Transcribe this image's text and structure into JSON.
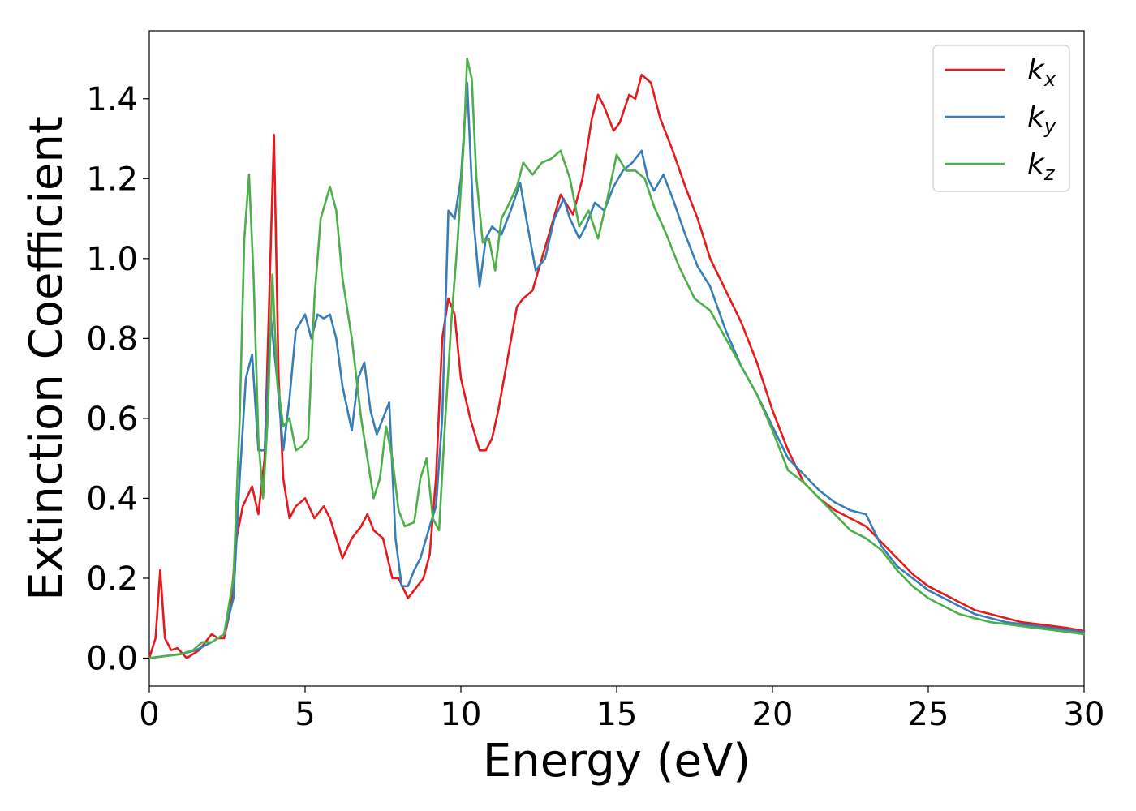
{
  "chart_data": {
    "type": "line",
    "title": "",
    "xlabel": "Energy (eV)",
    "ylabel": "Extinction Coefficient",
    "xlim": [
      0,
      30
    ],
    "ylim": [
      -0.07,
      1.57
    ],
    "xticks": [
      0,
      5,
      10,
      15,
      20,
      25,
      30
    ],
    "xtick_labels": [
      "0",
      "5",
      "10",
      "15",
      "20",
      "25",
      "30"
    ],
    "yticks": [
      0.0,
      0.2,
      0.4,
      0.6,
      0.8,
      1.0,
      1.2,
      1.4
    ],
    "ytick_labels": [
      "0.0",
      "0.2",
      "0.4",
      "0.6",
      "0.8",
      "1.0",
      "1.2",
      "1.4"
    ],
    "grid": false,
    "legend_position": "top-right",
    "series": [
      {
        "name": "kx",
        "name_base": "k",
        "name_sub": "x",
        "color": "#e41a1c",
        "x": [
          0,
          0.2,
          0.35,
          0.5,
          0.7,
          0.9,
          1.2,
          1.6,
          2.0,
          2.2,
          2.4,
          2.6,
          2.8,
          3.0,
          3.3,
          3.5,
          3.7,
          3.85,
          4.0,
          4.15,
          4.3,
          4.5,
          4.7,
          5.0,
          5.3,
          5.6,
          5.8,
          6.0,
          6.2,
          6.5,
          6.8,
          7.0,
          7.2,
          7.5,
          7.8,
          8.0,
          8.3,
          8.5,
          8.8,
          9.0,
          9.2,
          9.4,
          9.6,
          9.8,
          10.0,
          10.3,
          10.6,
          10.8,
          11.0,
          11.2,
          11.5,
          11.8,
          12.0,
          12.3,
          12.6,
          12.9,
          13.2,
          13.6,
          13.9,
          14.2,
          14.4,
          14.6,
          14.9,
          15.1,
          15.4,
          15.6,
          15.8,
          16.1,
          16.4,
          16.8,
          17.2,
          17.6,
          18.0,
          18.5,
          19.0,
          19.5,
          20.0,
          20.5,
          21.0,
          21.5,
          22.0,
          22.5,
          23.0,
          23.5,
          24.0,
          24.5,
          25.0,
          25.5,
          26.0,
          26.5,
          27.0,
          27.5,
          28.0,
          28.5,
          29.0,
          29.5,
          30.0
        ],
        "y": [
          0.0,
          0.05,
          0.22,
          0.05,
          0.02,
          0.025,
          0.0,
          0.02,
          0.06,
          0.05,
          0.05,
          0.12,
          0.3,
          0.38,
          0.43,
          0.36,
          0.5,
          0.9,
          1.31,
          0.7,
          0.45,
          0.35,
          0.38,
          0.4,
          0.35,
          0.38,
          0.35,
          0.3,
          0.25,
          0.3,
          0.33,
          0.36,
          0.32,
          0.3,
          0.2,
          0.2,
          0.15,
          0.17,
          0.2,
          0.26,
          0.45,
          0.8,
          0.9,
          0.86,
          0.7,
          0.6,
          0.52,
          0.52,
          0.55,
          0.62,
          0.75,
          0.88,
          0.9,
          0.92,
          1.0,
          1.08,
          1.16,
          1.11,
          1.2,
          1.35,
          1.41,
          1.38,
          1.32,
          1.34,
          1.41,
          1.4,
          1.46,
          1.44,
          1.35,
          1.27,
          1.18,
          1.1,
          1.0,
          0.92,
          0.84,
          0.74,
          0.62,
          0.52,
          0.44,
          0.4,
          0.37,
          0.35,
          0.33,
          0.29,
          0.25,
          0.21,
          0.18,
          0.16,
          0.14,
          0.12,
          0.11,
          0.1,
          0.09,
          0.085,
          0.08,
          0.075,
          0.068
        ]
      },
      {
        "name": "ky",
        "name_base": "k",
        "name_sub": "y",
        "color": "#377eb8",
        "x": [
          0,
          0.5,
          1.0,
          1.5,
          2.0,
          2.4,
          2.7,
          2.9,
          3.1,
          3.3,
          3.5,
          3.7,
          3.9,
          4.1,
          4.3,
          4.5,
          4.7,
          5.0,
          5.2,
          5.4,
          5.6,
          5.8,
          6.0,
          6.2,
          6.5,
          6.7,
          6.9,
          7.1,
          7.3,
          7.5,
          7.7,
          7.9,
          8.1,
          8.3,
          8.5,
          8.7,
          9.0,
          9.2,
          9.4,
          9.6,
          9.8,
          10.0,
          10.2,
          10.4,
          10.6,
          10.8,
          11.0,
          11.3,
          11.6,
          11.9,
          12.1,
          12.4,
          12.7,
          13.0,
          13.3,
          13.5,
          13.8,
          14.0,
          14.3,
          14.6,
          14.9,
          15.2,
          15.5,
          15.8,
          16.0,
          16.2,
          16.5,
          16.8,
          17.2,
          17.6,
          18.0,
          18.5,
          19.0,
          19.5,
          20.0,
          20.5,
          21.0,
          21.5,
          22.0,
          22.5,
          23.0,
          23.5,
          24.0,
          24.5,
          25.0,
          25.5,
          26.0,
          26.5,
          27.0,
          27.5,
          28.0,
          28.5,
          29.0,
          29.5,
          30.0
        ],
        "y": [
          0.0,
          0.005,
          0.01,
          0.02,
          0.04,
          0.06,
          0.15,
          0.45,
          0.7,
          0.76,
          0.52,
          0.52,
          0.85,
          0.7,
          0.52,
          0.65,
          0.82,
          0.86,
          0.8,
          0.86,
          0.85,
          0.86,
          0.8,
          0.68,
          0.57,
          0.7,
          0.74,
          0.62,
          0.56,
          0.6,
          0.64,
          0.3,
          0.18,
          0.18,
          0.22,
          0.25,
          0.33,
          0.38,
          0.6,
          1.12,
          1.1,
          1.2,
          1.44,
          1.1,
          0.93,
          1.05,
          1.08,
          1.06,
          1.12,
          1.19,
          1.1,
          0.97,
          1.0,
          1.1,
          1.15,
          1.1,
          1.05,
          1.08,
          1.14,
          1.12,
          1.18,
          1.22,
          1.24,
          1.27,
          1.2,
          1.17,
          1.21,
          1.15,
          1.06,
          0.98,
          0.93,
          0.82,
          0.73,
          0.66,
          0.58,
          0.5,
          0.46,
          0.42,
          0.39,
          0.37,
          0.36,
          0.28,
          0.23,
          0.2,
          0.17,
          0.15,
          0.13,
          0.11,
          0.1,
          0.09,
          0.085,
          0.08,
          0.075,
          0.07,
          0.065
        ]
      },
      {
        "name": "kz",
        "name_base": "k",
        "name_sub": "z",
        "color": "#4daf4a",
        "x": [
          0,
          0.5,
          1.0,
          1.4,
          1.7,
          2.0,
          2.4,
          2.7,
          2.9,
          3.05,
          3.2,
          3.35,
          3.5,
          3.65,
          3.8,
          3.95,
          4.1,
          4.3,
          4.5,
          4.7,
          4.9,
          5.1,
          5.3,
          5.5,
          5.8,
          6.0,
          6.2,
          6.5,
          6.8,
          7.0,
          7.2,
          7.4,
          7.6,
          7.8,
          8.0,
          8.2,
          8.5,
          8.7,
          8.9,
          9.1,
          9.3,
          9.5,
          9.7,
          9.9,
          10.1,
          10.2,
          10.35,
          10.5,
          10.7,
          10.9,
          11.1,
          11.3,
          11.5,
          11.8,
          12.0,
          12.3,
          12.6,
          12.9,
          13.2,
          13.5,
          13.8,
          14.1,
          14.4,
          14.7,
          15.0,
          15.3,
          15.6,
          15.9,
          16.2,
          16.6,
          17.0,
          17.5,
          18.0,
          18.5,
          19.0,
          19.5,
          20.0,
          20.5,
          21.0,
          21.5,
          22.0,
          22.5,
          23.0,
          23.5,
          24.0,
          24.5,
          25.0,
          25.5,
          26.0,
          26.5,
          27.0,
          27.5,
          28.0,
          28.5,
          29.0,
          29.5,
          30.0
        ],
        "y": [
          0.0,
          0.005,
          0.01,
          0.02,
          0.04,
          0.04,
          0.06,
          0.2,
          0.6,
          1.05,
          1.21,
          0.95,
          0.55,
          0.4,
          0.6,
          0.96,
          0.7,
          0.58,
          0.6,
          0.52,
          0.53,
          0.55,
          0.9,
          1.1,
          1.18,
          1.12,
          0.95,
          0.8,
          0.6,
          0.5,
          0.4,
          0.45,
          0.58,
          0.5,
          0.37,
          0.33,
          0.34,
          0.45,
          0.5,
          0.35,
          0.32,
          0.6,
          0.85,
          1.05,
          1.3,
          1.5,
          1.45,
          1.2,
          1.04,
          1.05,
          0.97,
          1.1,
          1.13,
          1.18,
          1.24,
          1.21,
          1.24,
          1.25,
          1.27,
          1.2,
          1.08,
          1.12,
          1.05,
          1.15,
          1.26,
          1.22,
          1.22,
          1.2,
          1.13,
          1.06,
          0.98,
          0.9,
          0.87,
          0.8,
          0.73,
          0.66,
          0.57,
          0.47,
          0.44,
          0.4,
          0.36,
          0.32,
          0.3,
          0.27,
          0.22,
          0.18,
          0.15,
          0.13,
          0.11,
          0.1,
          0.09,
          0.085,
          0.08,
          0.075,
          0.07,
          0.065,
          0.06
        ]
      }
    ]
  }
}
